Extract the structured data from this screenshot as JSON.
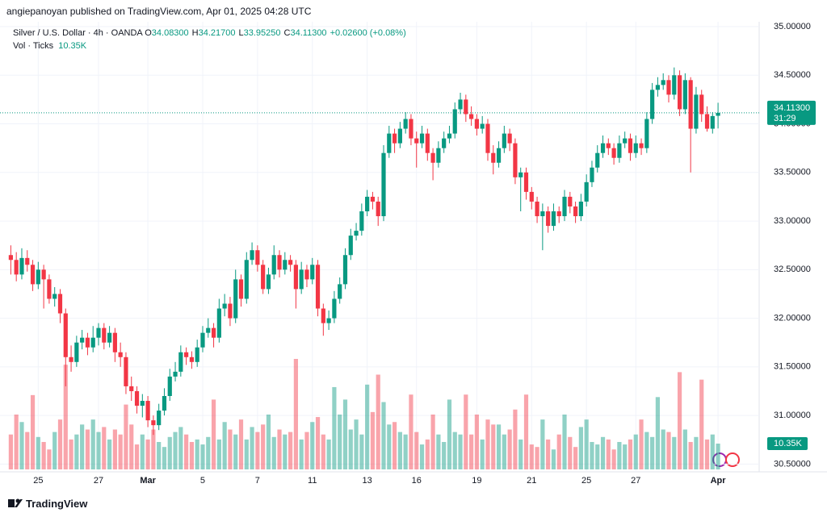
{
  "header": "angiepanoyan published on TradingView.com, Apr 01, 2025 04:28 UTC",
  "footer": "TradingView",
  "chart_data": {
    "type": "candlestick",
    "symbol": "Silver / U.S. Dollar · 4h · OANDA",
    "ohlc_legend": [
      {
        "key": "O",
        "text": "34.08300"
      },
      {
        "key": "H",
        "text": "34.21700"
      },
      {
        "key": "L",
        "text": "33.95250"
      },
      {
        "key": "C",
        "text": "34.11300"
      }
    ],
    "change": "+0.02600 (+0.08%)",
    "volume_title": "Vol · Ticks",
    "last_volume": {
      "value": 10350,
      "label": "10.35K"
    },
    "last_price": {
      "value": 34.113,
      "label": "34.11300"
    },
    "countdown": "31:29",
    "up_color": "#089981",
    "down_color": "#f23645",
    "ylim": [
      30.42,
      35.05
    ],
    "yticks": [
      {
        "value": 30.5,
        "label": "30.50000"
      },
      {
        "value": 31,
        "label": "31.00000"
      },
      {
        "value": 31.5,
        "label": "31.50000"
      },
      {
        "value": 32,
        "label": "32.00000"
      },
      {
        "value": 32.5,
        "label": "32.50000"
      },
      {
        "value": 33,
        "label": "33.00000"
      },
      {
        "value": 33.5,
        "label": "33.50000"
      },
      {
        "value": 34,
        "label": "34.00000"
      },
      {
        "value": 34.5,
        "label": "34.50000"
      },
      {
        "value": 35,
        "label": "35.00000"
      }
    ],
    "xlim": [
      -0.5,
      136.5
    ],
    "xticks": [
      {
        "value": 5,
        "label": "25"
      },
      {
        "value": 16,
        "label": "27"
      },
      {
        "value": 25,
        "label": "Mar"
      },
      {
        "value": 35,
        "label": "5"
      },
      {
        "value": 45,
        "label": "7"
      },
      {
        "value": 55,
        "label": "11"
      },
      {
        "value": 65,
        "label": "13"
      },
      {
        "value": 74,
        "label": "16"
      },
      {
        "value": 85,
        "label": "19"
      },
      {
        "value": 95,
        "label": "21"
      },
      {
        "value": 105,
        "label": "25"
      },
      {
        "value": 114,
        "label": "27"
      },
      {
        "value": 129,
        "label": "Apr"
      }
    ],
    "grid": true,
    "candles": [
      [
        32.65,
        32.75,
        32.45,
        32.6
      ],
      [
        32.6,
        32.68,
        32.38,
        32.45
      ],
      [
        32.45,
        32.72,
        32.4,
        32.62
      ],
      [
        32.62,
        32.7,
        32.48,
        32.55
      ],
      [
        32.55,
        32.6,
        32.28,
        32.35
      ],
      [
        32.35,
        32.58,
        32.3,
        32.5
      ],
      [
        32.5,
        32.55,
        32.1,
        32.4
      ],
      [
        32.4,
        32.45,
        32.15,
        32.2
      ],
      [
        32.2,
        32.32,
        32.12,
        32.25
      ],
      [
        32.25,
        32.3,
        31.95,
        32.05
      ],
      [
        32.05,
        32.1,
        31.3,
        31.6
      ],
      [
        31.6,
        31.72,
        31.45,
        31.55
      ],
      [
        31.55,
        31.82,
        31.5,
        31.75
      ],
      [
        31.75,
        31.88,
        31.68,
        31.8
      ],
      [
        31.8,
        31.85,
        31.62,
        31.7
      ],
      [
        31.7,
        31.92,
        31.65,
        31.8
      ],
      [
        31.8,
        31.95,
        31.72,
        31.9
      ],
      [
        31.9,
        31.95,
        31.68,
        31.75
      ],
      [
        31.75,
        31.92,
        31.7,
        31.85
      ],
      [
        31.85,
        31.9,
        31.55,
        31.65
      ],
      [
        31.65,
        31.75,
        31.5,
        31.6
      ],
      [
        31.6,
        31.65,
        31.22,
        31.3
      ],
      [
        31.3,
        31.4,
        31.15,
        31.25
      ],
      [
        31.25,
        31.3,
        31.02,
        31.1
      ],
      [
        31.1,
        31.22,
        30.98,
        31.15
      ],
      [
        31.15,
        31.2,
        30.88,
        30.95
      ],
      [
        30.95,
        31.0,
        30.8,
        30.9
      ],
      [
        30.9,
        31.12,
        30.85,
        31.05
      ],
      [
        31.05,
        31.28,
        31.0,
        31.2
      ],
      [
        31.2,
        31.48,
        31.15,
        31.4
      ],
      [
        31.4,
        31.55,
        31.35,
        31.45
      ],
      [
        31.45,
        31.72,
        31.4,
        31.65
      ],
      [
        31.65,
        31.7,
        31.52,
        31.6
      ],
      [
        31.6,
        31.66,
        31.48,
        31.55
      ],
      [
        31.55,
        31.78,
        31.5,
        31.7
      ],
      [
        31.7,
        31.92,
        31.65,
        31.85
      ],
      [
        31.85,
        32.0,
        31.8,
        31.9
      ],
      [
        31.9,
        31.95,
        31.7,
        31.8
      ],
      [
        31.8,
        32.2,
        31.75,
        32.1
      ],
      [
        32.1,
        32.25,
        32.02,
        32.15
      ],
      [
        32.15,
        32.22,
        31.92,
        32.0
      ],
      [
        32.0,
        32.5,
        31.95,
        32.4
      ],
      [
        32.4,
        32.45,
        32.12,
        32.2
      ],
      [
        32.2,
        32.68,
        32.15,
        32.6
      ],
      [
        32.6,
        32.78,
        32.55,
        32.7
      ],
      [
        32.7,
        32.75,
        32.48,
        32.55
      ],
      [
        32.55,
        32.6,
        32.25,
        32.3
      ],
      [
        32.3,
        32.52,
        32.25,
        32.45
      ],
      [
        32.45,
        32.75,
        32.4,
        32.65
      ],
      [
        32.65,
        32.7,
        32.42,
        32.5
      ],
      [
        32.5,
        32.68,
        32.45,
        32.6
      ],
      [
        32.6,
        32.65,
        32.48,
        32.55
      ],
      [
        32.55,
        32.6,
        32.1,
        32.3
      ],
      [
        32.3,
        32.58,
        32.25,
        32.5
      ],
      [
        32.5,
        32.55,
        32.32,
        32.4
      ],
      [
        32.4,
        32.62,
        32.35,
        32.55
      ],
      [
        32.55,
        32.6,
        32.02,
        32.1
      ],
      [
        32.1,
        32.15,
        31.82,
        31.95
      ],
      [
        31.95,
        32.08,
        31.88,
        32.0
      ],
      [
        32.0,
        32.28,
        31.95,
        32.2
      ],
      [
        32.2,
        32.42,
        32.15,
        32.35
      ],
      [
        32.35,
        32.72,
        32.3,
        32.65
      ],
      [
        32.65,
        32.92,
        32.6,
        32.85
      ],
      [
        32.85,
        32.98,
        32.8,
        32.9
      ],
      [
        32.9,
        33.18,
        32.85,
        33.1
      ],
      [
        33.1,
        33.32,
        33.05,
        33.25
      ],
      [
        33.25,
        33.3,
        33.12,
        33.2
      ],
      [
        33.2,
        33.25,
        32.95,
        33.05
      ],
      [
        33.05,
        33.78,
        33.0,
        33.7
      ],
      [
        33.7,
        33.98,
        33.65,
        33.9
      ],
      [
        33.9,
        33.95,
        33.7,
        33.8
      ],
      [
        33.8,
        34.02,
        33.75,
        33.95
      ],
      [
        33.95,
        34.12,
        33.9,
        34.05
      ],
      [
        34.05,
        34.1,
        33.78,
        33.85
      ],
      [
        33.85,
        33.92,
        33.55,
        33.8
      ],
      [
        33.8,
        33.98,
        33.75,
        33.9
      ],
      [
        33.9,
        33.95,
        33.62,
        33.7
      ],
      [
        33.7,
        33.75,
        33.42,
        33.6
      ],
      [
        33.6,
        33.82,
        33.55,
        33.75
      ],
      [
        33.75,
        33.92,
        33.7,
        33.85
      ],
      [
        33.85,
        33.98,
        33.8,
        33.9
      ],
      [
        33.9,
        34.22,
        33.85,
        34.15
      ],
      [
        34.15,
        34.32,
        34.1,
        34.25
      ],
      [
        34.25,
        34.3,
        34.02,
        34.1
      ],
      [
        34.1,
        34.18,
        33.98,
        34.05
      ],
      [
        34.05,
        34.1,
        33.88,
        33.95
      ],
      [
        33.95,
        34.08,
        33.9,
        34.0
      ],
      [
        34.0,
        34.05,
        33.62,
        33.7
      ],
      [
        33.7,
        33.78,
        33.48,
        33.6
      ],
      [
        33.6,
        33.82,
        33.55,
        33.75
      ],
      [
        33.75,
        33.98,
        33.7,
        33.9
      ],
      [
        33.9,
        33.95,
        33.72,
        33.8
      ],
      [
        33.8,
        33.85,
        33.38,
        33.45
      ],
      [
        33.45,
        33.55,
        33.1,
        33.5
      ],
      [
        33.5,
        33.55,
        33.22,
        33.3
      ],
      [
        33.3,
        33.35,
        33.12,
        33.2
      ],
      [
        33.2,
        33.25,
        32.98,
        33.05
      ],
      [
        33.05,
        33.18,
        32.7,
        33.1
      ],
      [
        33.1,
        33.15,
        32.88,
        32.95
      ],
      [
        32.95,
        33.18,
        32.9,
        33.1
      ],
      [
        33.1,
        33.15,
        32.98,
        33.05
      ],
      [
        33.05,
        33.32,
        33.0,
        33.25
      ],
      [
        33.25,
        33.3,
        33.08,
        33.15
      ],
      [
        33.15,
        33.2,
        32.98,
        33.05
      ],
      [
        33.05,
        33.28,
        33.0,
        33.2
      ],
      [
        33.2,
        33.48,
        33.15,
        33.4
      ],
      [
        33.4,
        33.62,
        33.35,
        33.55
      ],
      [
        33.55,
        33.78,
        33.5,
        33.7
      ],
      [
        33.7,
        33.88,
        33.65,
        33.8
      ],
      [
        33.8,
        33.85,
        33.68,
        33.75
      ],
      [
        33.75,
        33.8,
        33.58,
        33.65
      ],
      [
        33.65,
        33.88,
        33.6,
        33.8
      ],
      [
        33.8,
        33.92,
        33.75,
        33.85
      ],
      [
        33.85,
        33.9,
        33.62,
        33.7
      ],
      [
        33.7,
        33.88,
        33.65,
        33.8
      ],
      [
        33.8,
        33.85,
        33.68,
        33.75
      ],
      [
        33.75,
        34.12,
        33.7,
        34.05
      ],
      [
        34.05,
        34.42,
        34.0,
        34.35
      ],
      [
        34.35,
        34.48,
        34.28,
        34.4
      ],
      [
        34.4,
        34.52,
        34.35,
        34.45
      ],
      [
        34.45,
        34.5,
        34.22,
        34.3
      ],
      [
        34.3,
        34.58,
        34.25,
        34.5
      ],
      [
        34.5,
        34.55,
        34.08,
        34.15
      ],
      [
        34.15,
        34.52,
        34.1,
        34.45
      ],
      [
        34.45,
        34.48,
        33.5,
        33.95
      ],
      [
        33.95,
        34.38,
        33.9,
        34.3
      ],
      [
        34.3,
        34.35,
        34.02,
        34.1
      ],
      [
        34.1,
        34.18,
        33.92,
        33.95
      ],
      [
        33.95,
        34.12,
        33.9,
        34.08
      ],
      [
        34.083,
        34.217,
        33.9525,
        34.113
      ]
    ],
    "volume": [
      14000,
      22000,
      19000,
      15000,
      29800,
      13000,
      11000,
      8000,
      15000,
      20000,
      42000,
      12000,
      14000,
      18000,
      16000,
      20000,
      15000,
      17000,
      12000,
      16000,
      14000,
      26000,
      18000,
      10000,
      14000,
      12000,
      16000,
      11000,
      9000,
      13000,
      15000,
      17000,
      14000,
      11000,
      12000,
      10000,
      13000,
      28000,
      12000,
      19000,
      16000,
      14000,
      20000,
      12000,
      17000,
      15000,
      18000,
      22000,
      13000,
      16000,
      14000,
      15000,
      44300,
      12000,
      15000,
      19000,
      21000,
      14000,
      12000,
      33000,
      22000,
      28000,
      16000,
      20000,
      14000,
      34000,
      23000,
      38000,
      27000,
      18000,
      19000,
      15000,
      14000,
      30000,
      15000,
      10000,
      12000,
      22000,
      14000,
      11000,
      28000,
      15000,
      14000,
      30000,
      14000,
      22000,
      12000,
      20000,
      18000,
      18000,
      14000,
      16000,
      24000,
      12000,
      30000,
      10000,
      9000,
      20000,
      12000,
      8000,
      14000,
      22000,
      13000,
      9000,
      17000,
      20000,
      11000,
      10000,
      13000,
      12000,
      8000,
      11000,
      10000,
      12000,
      14000,
      20000,
      15000,
      13000,
      29000,
      16000,
      15000,
      13000,
      39000,
      16000,
      11000,
      13000,
      36000,
      12000,
      14000,
      10350
    ]
  }
}
